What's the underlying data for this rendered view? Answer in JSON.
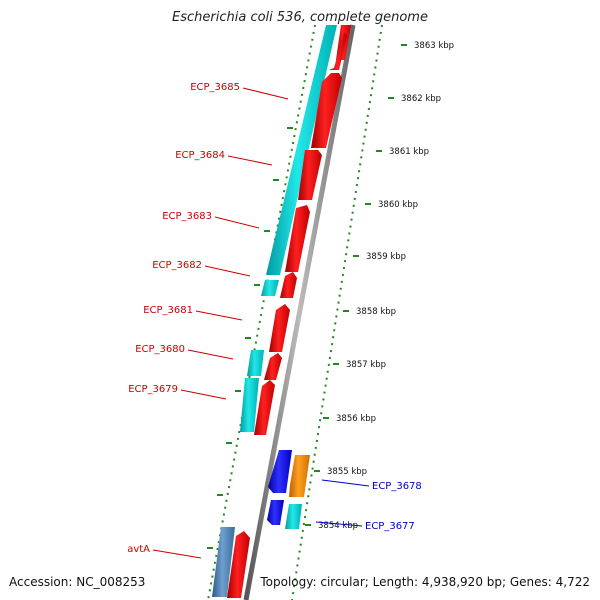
{
  "title": "Escherichia coli 536, complete genome",
  "footer": {
    "accession": "Accession: NC_008253",
    "summary": "Topology: circular; Length: 4,938,920 bp; Genes: 4,722"
  },
  "colors": {
    "label_forward": "#cc0000",
    "label_reverse": "#0000cc",
    "cds_red": "#ee0000",
    "cds_cyan": "#00d4d4",
    "cds_blue": "#1414dd",
    "cds_orange": "#ff8800",
    "cds_steelblue": "#4a7fb3",
    "tick_green": "#228822",
    "backbone": "#888888"
  },
  "kbp_ticks": [
    {
      "label": "3863 kbp"
    },
    {
      "label": "3862 kbp"
    },
    {
      "label": "3861 kbp"
    },
    {
      "label": "3860 kbp"
    },
    {
      "label": "3859 kbp"
    },
    {
      "label": "3858 kbp"
    },
    {
      "label": "3857 kbp"
    },
    {
      "label": "3856 kbp"
    },
    {
      "label": "3855 kbp"
    },
    {
      "label": "3854 kbp"
    }
  ],
  "gene_labels": [
    {
      "name": "ECP_3685",
      "color": "#cc0000"
    },
    {
      "name": "ECP_3684",
      "color": "#cc0000"
    },
    {
      "name": "ECP_3683",
      "color": "#cc0000"
    },
    {
      "name": "ECP_3682",
      "color": "#cc0000"
    },
    {
      "name": "ECP_3681",
      "color": "#cc0000"
    },
    {
      "name": "ECP_3680",
      "color": "#cc0000"
    },
    {
      "name": "ECP_3679",
      "color": "#cc0000"
    },
    {
      "name": "avtA",
      "color": "#cc0000"
    },
    {
      "name": "ECP_3678",
      "color": "#0000cc"
    },
    {
      "name": "ECP_3677",
      "color": "#0000cc"
    }
  ]
}
